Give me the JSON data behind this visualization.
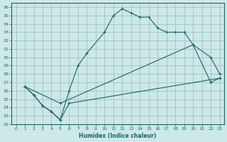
{
  "xlabel": "Humidex (Indice chaleur)",
  "background_color": "#cce8e8",
  "grid_color": "#99bbbb",
  "line_color": "#1a6666",
  "xlim": [
    -0.5,
    23.5
  ],
  "ylim": [
    22,
    36.5
  ],
  "xticks": [
    0,
    1,
    2,
    3,
    4,
    5,
    6,
    7,
    8,
    9,
    10,
    11,
    12,
    13,
    14,
    15,
    16,
    17,
    18,
    19,
    20,
    21,
    22,
    23
  ],
  "yticks": [
    22,
    23,
    24,
    25,
    26,
    27,
    28,
    29,
    30,
    31,
    32,
    33,
    34,
    35,
    36
  ],
  "line1_x": [
    1,
    2,
    3,
    4,
    5,
    6,
    7,
    8,
    10,
    11,
    12,
    13,
    14,
    15,
    16,
    17,
    18,
    19,
    20,
    22,
    23
  ],
  "line1_y": [
    26.5,
    25.5,
    24.2,
    23.5,
    22.5,
    26.0,
    29.0,
    30.5,
    33.0,
    35.0,
    35.8,
    35.3,
    34.8,
    34.8,
    33.5,
    33.0,
    33.0,
    33.0,
    31.5,
    30.0,
    28.0
  ],
  "line2_x": [
    1,
    2,
    3,
    4,
    5,
    6,
    23
  ],
  "line2_y": [
    26.5,
    25.5,
    24.2,
    23.5,
    22.5,
    24.5,
    27.5
  ],
  "line3_x": [
    1,
    5,
    20,
    22,
    23
  ],
  "line3_y": [
    26.5,
    24.5,
    31.5,
    27.0,
    27.5
  ]
}
